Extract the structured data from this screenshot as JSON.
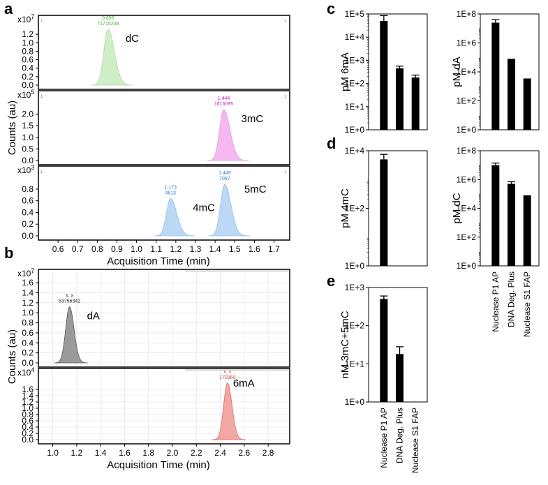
{
  "panel_letters": {
    "a": "a",
    "b": "b",
    "c": "c",
    "d": "d",
    "e": "e"
  },
  "chart_data": [
    {
      "id": "a",
      "type": "area",
      "xlabel": "Acquisition Time (min)",
      "ylabel": "Counts (au)",
      "xlim": [
        0.5,
        1.78
      ],
      "xticks": [
        "0.6",
        "0.7",
        "0.8",
        "0.9",
        "1.0",
        "1.1",
        "1.2",
        "1.3",
        "1.4",
        "1.5",
        "1.6",
        "1.7"
      ],
      "subplots": [
        {
          "scale": "x10",
          "exponent": "7",
          "ylim": [
            0,
            1.45
          ],
          "yticks": [
            "0.0",
            "0.2",
            "0.4",
            "0.6",
            "0.8",
            "1.0",
            "1.2"
          ],
          "color": "#cfeec8",
          "line": "#a8dca0",
          "peaks": [
            {
              "name": "dC",
              "time": "0.855",
              "area": "71715248",
              "t": 0.855,
              "height": 1.32,
              "lblcolor": "#3bb33b"
            }
          ]
        },
        {
          "scale": "x10",
          "exponent": "5",
          "ylim": [
            0,
            2.65
          ],
          "yticks": [
            "0.0",
            "0.5",
            "1.0",
            "1.5",
            "2.0"
          ],
          "color": "#f6b8f0",
          "line": "#e59ae0",
          "peaks": [
            {
              "name": "3mC",
              "time": "1.444",
              "area": "1616095",
              "t": 1.444,
              "height": 2.2,
              "lblcolor": "#d020c0"
            }
          ]
        },
        {
          "scale": "x10",
          "exponent": "3",
          "ylim": [
            0,
            1.05
          ],
          "yticks": [
            "0.0",
            "0.2",
            "0.4",
            "0.6",
            "0.8"
          ],
          "color": "#bcd8f4",
          "line": "#9cc0ea",
          "peaks": [
            {
              "name": "4mC",
              "time": "1.173",
              "area": "4813",
              "t": 1.173,
              "height": 0.64,
              "lblcolor": "#2a80d8"
            },
            {
              "name": "5mC",
              "time": "1.449",
              "area": "7097",
              "t": 1.449,
              "height": 0.88,
              "lblcolor": "#2a80d8"
            }
          ]
        }
      ]
    },
    {
      "id": "b",
      "type": "area",
      "xlabel": "Acquisition Time (min)",
      "ylabel": "Counts (au)",
      "xlim": [
        0.88,
        2.98
      ],
      "xticks": [
        "1.0",
        "1.2",
        "1.4",
        "1.6",
        "1.8",
        "2.0",
        "2.2",
        "2.4",
        "2.6",
        "2.8"
      ],
      "subplots": [
        {
          "scale": "x10",
          "exponent": "7",
          "ylim": [
            0,
            1.7
          ],
          "yticks": [
            "0.0",
            "0.2",
            "0.4",
            "0.6",
            "0.8",
            "1.0",
            "1.2",
            "1.4",
            "1.6"
          ],
          "color": "#9a9a9a",
          "line": "#555555",
          "peaks": [
            {
              "name": "dA",
              "time": "x, x",
              "area": "53756342",
              "t": 1.14,
              "height": 1.12,
              "lblcolor": "#222222"
            }
          ]
        },
        {
          "scale": "x10",
          "exponent": "4",
          "ylim": [
            0,
            2.0
          ],
          "yticks": [
            "0.0",
            "0.2",
            "0.4",
            "0.6",
            "0.8",
            "1.0",
            "1.2",
            "1.4",
            "1.6"
          ],
          "color": "#f4a8a4",
          "line": "#d86a64",
          "peaks": [
            {
              "name": "6mA",
              "time": "x, x",
              "area": "170360",
              "t": 2.46,
              "height": 1.8,
              "lblcolor": "#d04040"
            }
          ]
        }
      ]
    },
    {
      "id": "c-left",
      "type": "bar",
      "ylabel": "pM 6mA",
      "scale": "log",
      "yticks": [
        "1E+0",
        "1E+1",
        "1E+2",
        "1E+3",
        "1E+4",
        "1E+5"
      ],
      "categories": [
        "Nuclease P1 AP",
        "DNA Deg. Plus",
        "Nuclease S1 FAP"
      ],
      "values": [
        50000,
        450,
        180
      ],
      "errors": [
        85000,
        560,
        230
      ]
    },
    {
      "id": "c-right",
      "type": "bar",
      "ylabel": "pM dA",
      "scale": "log",
      "yticks": [
        "1E+0",
        "1E+2",
        "1E+4",
        "1E+6",
        "1E+8"
      ],
      "categories": [
        "Nuclease P1 AP",
        "DNA Deg. Plus",
        "Nuclease S1 FAP"
      ],
      "values": [
        25000000,
        80000,
        3500
      ],
      "errors": [
        40000000,
        80000,
        3500
      ]
    },
    {
      "id": "d-left",
      "type": "bar",
      "ylabel": "pM 4mC",
      "scale": "log",
      "yticks": [
        "1E+0",
        "1E+2",
        "1E+4"
      ],
      "categories": [
        "Nuclease P1 AP",
        "DNA Deg. Plus",
        "Nuclease S1 FAP"
      ],
      "values": [
        5000,
        null,
        null
      ],
      "errors": [
        7500,
        null,
        null
      ]
    },
    {
      "id": "d-right",
      "type": "bar",
      "ylabel": "pM dC",
      "scale": "log",
      "yticks": [
        "1E+0",
        "1E+2",
        "1E+4",
        "1E+6",
        "1E+8"
      ],
      "categories": [
        "Nuclease P1 AP",
        "DNA Deg. Plus",
        "Nuclease S1 FAP"
      ],
      "values": [
        10000000,
        500000,
        80000
      ],
      "errors": [
        14000000,
        700000,
        80000
      ]
    },
    {
      "id": "e",
      "type": "bar",
      "ylabel": "nM 3mC+5mC",
      "scale": "log",
      "yticks": [
        "1E+0",
        "1E+1",
        "1E+2",
        "1E+3"
      ],
      "categories": [
        "Nuclease P1 AP",
        "DNA Deg. Plus",
        "Nuclease S1 FAP"
      ],
      "values": [
        500,
        18,
        null
      ],
      "errors": [
        600,
        28,
        null
      ]
    }
  ]
}
